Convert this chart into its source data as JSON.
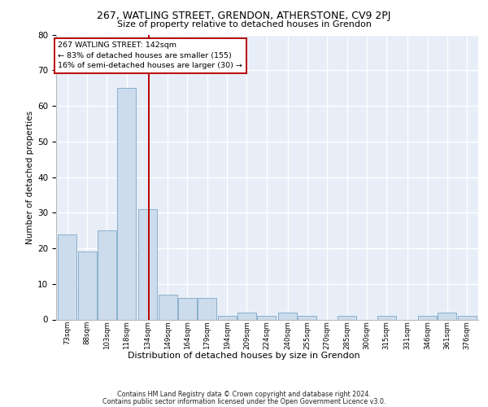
{
  "title1": "267, WATLING STREET, GRENDON, ATHERSTONE, CV9 2PJ",
  "title2": "Size of property relative to detached houses in Grendon",
  "xlabel": "Distribution of detached houses by size in Grendon",
  "ylabel": "Number of detached properties",
  "footer1": "Contains HM Land Registry data © Crown copyright and database right 2024.",
  "footer2": "Contains public sector information licensed under the Open Government Licence v3.0.",
  "annotation_line1": "267 WATLING STREET: 142sqm",
  "annotation_line2": "← 83% of detached houses are smaller (155)",
  "annotation_line3": "16% of semi-detached houses are larger (30) →",
  "bins": [
    73,
    88,
    103,
    118,
    134,
    149,
    164,
    179,
    194,
    209,
    224,
    240,
    255,
    270,
    285,
    300,
    315,
    331,
    346,
    361,
    376
  ],
  "bin_labels": [
    "73sqm",
    "88sqm",
    "103sqm",
    "118sqm",
    "134sqm",
    "149sqm",
    "164sqm",
    "179sqm",
    "194sqm",
    "209sqm",
    "224sqm",
    "240sqm",
    "255sqm",
    "270sqm",
    "285sqm",
    "300sqm",
    "315sqm",
    "331sqm",
    "346sqm",
    "361sqm",
    "376sqm"
  ],
  "values": [
    24,
    19,
    25,
    65,
    31,
    7,
    6,
    6,
    1,
    2,
    1,
    2,
    1,
    0,
    1,
    0,
    1,
    0,
    1,
    2,
    1
  ],
  "bar_color": "#ccdcec",
  "bar_edge_color": "#8ab0cc",
  "red_line_x": 142,
  "ylim": [
    0,
    80
  ],
  "yticks": [
    0,
    10,
    20,
    30,
    40,
    50,
    60,
    70,
    80
  ],
  "plot_bg_color": "#e8eef8",
  "grid_color": "#ffffff",
  "bin_width": 15
}
